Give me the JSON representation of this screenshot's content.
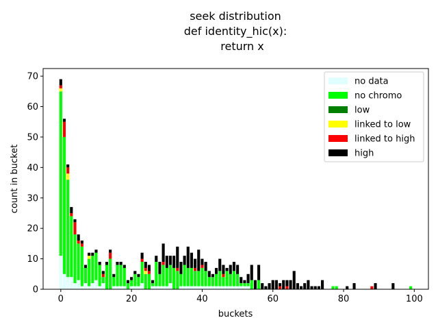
{
  "chart_data": {
    "type": "bar",
    "stacked": true,
    "title_lines": [
      "seek distribution",
      "def identity_hic(x):",
      "return x"
    ],
    "xlabel": "buckets",
    "ylabel": "count in bucket",
    "xlim": [
      -5,
      104
    ],
    "ylim": [
      0,
      72.5
    ],
    "xticks": [
      0,
      20,
      40,
      60,
      80,
      100
    ],
    "yticks": [
      0,
      10,
      20,
      30,
      40,
      50,
      60,
      70
    ],
    "grid": false,
    "legend_position": "top-right",
    "colors": [
      "#e0ffff",
      "#00ff00",
      "#008000",
      "#ffff00",
      "#ff0000",
      "#000000"
    ],
    "buckets": [
      0,
      1,
      2,
      3,
      4,
      5,
      6,
      7,
      8,
      9,
      10,
      11,
      12,
      13,
      14,
      15,
      16,
      17,
      18,
      19,
      20,
      21,
      22,
      23,
      24,
      25,
      26,
      27,
      28,
      29,
      30,
      31,
      32,
      33,
      34,
      35,
      36,
      37,
      38,
      39,
      40,
      41,
      42,
      43,
      44,
      45,
      46,
      47,
      48,
      49,
      50,
      51,
      52,
      53,
      54,
      55,
      56,
      57,
      58,
      59,
      60,
      61,
      62,
      63,
      64,
      65,
      66,
      67,
      68,
      69,
      70,
      71,
      72,
      73,
      74,
      75,
      76,
      77,
      78,
      79,
      80,
      81,
      82,
      83,
      84,
      85,
      86,
      87,
      88,
      89,
      90,
      91,
      92,
      93,
      94,
      95,
      96,
      97,
      98,
      99,
      100
    ],
    "series": [
      {
        "name": "no data",
        "values": [
          11,
          5,
          4,
          4,
          2,
          3,
          1,
          2,
          1,
          2,
          3,
          1,
          2,
          0,
          0,
          1,
          1,
          1,
          1,
          0,
          1,
          1,
          1,
          2,
          0,
          0,
          1,
          1,
          1,
          1,
          1,
          2,
          0,
          0,
          1,
          1,
          1,
          1,
          1,
          1,
          1,
          1,
          1,
          1,
          1,
          1,
          1,
          1,
          1,
          1,
          1,
          1,
          1,
          1,
          0,
          0,
          0,
          0,
          0,
          0,
          0,
          0,
          0,
          0,
          0,
          0,
          0,
          0,
          0,
          0,
          0,
          0,
          0,
          0,
          0,
          0,
          0,
          0,
          0,
          0,
          0,
          0,
          0,
          0,
          0,
          0,
          0,
          0,
          0,
          0,
          0,
          0,
          0,
          0,
          0,
          0,
          0,
          0,
          0,
          0,
          0
        ]
      },
      {
        "name": "no chromo",
        "values": [
          54,
          45,
          32,
          20,
          16,
          12,
          13,
          5,
          9,
          9,
          9,
          7,
          2,
          8,
          10,
          3,
          7,
          7,
          6,
          2,
          2,
          4,
          3,
          7,
          5,
          5,
          1,
          8,
          4,
          7,
          6,
          6,
          7,
          6,
          4,
          7,
          6,
          6,
          5,
          5,
          6,
          5,
          3,
          3,
          4,
          5,
          3,
          5,
          4,
          5,
          4,
          1,
          1,
          1,
          3,
          0,
          3,
          0,
          0,
          0,
          0,
          0,
          0,
          0,
          0,
          0,
          0,
          0,
          0,
          0,
          0,
          0,
          0,
          0,
          0,
          0,
          0,
          1,
          1,
          0,
          0,
          0,
          0,
          0,
          0,
          0,
          0,
          0,
          0,
          0,
          0,
          0,
          0,
          0,
          0,
          0,
          0,
          0,
          0,
          1,
          0
        ]
      },
      {
        "name": "low",
        "values": [
          0,
          0,
          0,
          0,
          0,
          0,
          0,
          0,
          0,
          0,
          0,
          0,
          0,
          0,
          0,
          0,
          0,
          0,
          0,
          0,
          0,
          0,
          0,
          0,
          0,
          0,
          0,
          0,
          0,
          0,
          0,
          0,
          0,
          0,
          0,
          0,
          0,
          0,
          0,
          0,
          0,
          0,
          0,
          0,
          0,
          0,
          0,
          0,
          0,
          0,
          0,
          0,
          0,
          0,
          0,
          0,
          0,
          0,
          0,
          0,
          0,
          0,
          0,
          0,
          0,
          0,
          0,
          0,
          0,
          0,
          0,
          0,
          0,
          0,
          0,
          0,
          0,
          0,
          0,
          0,
          0,
          0,
          0,
          0,
          0,
          0,
          0,
          0,
          0,
          0,
          0,
          0,
          0,
          0,
          0,
          0,
          0,
          0,
          0,
          0,
          0
        ]
      },
      {
        "name": "linked to low",
        "values": [
          1,
          0,
          2,
          0,
          0,
          0,
          0,
          0,
          1,
          0,
          0,
          0,
          0,
          0,
          0,
          0,
          0,
          0,
          0,
          0,
          0,
          0,
          0,
          0,
          1,
          0,
          0,
          0,
          0,
          0,
          0,
          0,
          0,
          0,
          0,
          0,
          0,
          0,
          0,
          0,
          0,
          0,
          0,
          0,
          0,
          0,
          0,
          0,
          0,
          0,
          0,
          0,
          0,
          0,
          0,
          0,
          0,
          0,
          0,
          0,
          0,
          0,
          0,
          0,
          0,
          0,
          0,
          0,
          0,
          0,
          0,
          0,
          0,
          0,
          0,
          0,
          0,
          0,
          0,
          0,
          0,
          0,
          0,
          0,
          0,
          0,
          0,
          0,
          0,
          0,
          0,
          0,
          0,
          0,
          0,
          0,
          0,
          0,
          0,
          0,
          0
        ]
      },
      {
        "name": "linked to high",
        "values": [
          1,
          5,
          2,
          1,
          4,
          1,
          1,
          0,
          0,
          0,
          0,
          0,
          1,
          0,
          2,
          0,
          0,
          0,
          0,
          0,
          0,
          0,
          0,
          1,
          1,
          1,
          0,
          0,
          0,
          1,
          0,
          0,
          0,
          1,
          0,
          0,
          0,
          0,
          1,
          0,
          1,
          0,
          0,
          0,
          0,
          0,
          1,
          0,
          0,
          0,
          0,
          0,
          0,
          0,
          0,
          0,
          0,
          0,
          0,
          0,
          0,
          0,
          1,
          0,
          1,
          0,
          0,
          0,
          0,
          0,
          0,
          0,
          0,
          0,
          0,
          0,
          0,
          0,
          0,
          0,
          0,
          0,
          0,
          0,
          0,
          0,
          0,
          0,
          1,
          0,
          0,
          0,
          0,
          0,
          0,
          0,
          0,
          0,
          0,
          0,
          0
        ]
      },
      {
        "name": "high",
        "values": [
          2,
          1,
          1,
          2,
          1,
          2,
          1,
          1,
          1,
          1,
          1,
          1,
          1,
          1,
          1,
          1,
          1,
          1,
          1,
          1,
          1,
          1,
          1,
          2,
          2,
          2,
          1,
          2,
          4,
          6,
          4,
          3,
          4,
          7,
          4,
          3,
          7,
          5,
          3,
          7,
          2,
          3,
          2,
          1,
          2,
          4,
          3,
          1,
          3,
          3,
          3,
          2,
          1,
          3,
          5,
          3,
          5,
          2,
          1,
          2,
          3,
          3,
          1,
          3,
          2,
          3,
          6,
          2,
          1,
          2,
          3,
          1,
          1,
          1,
          3,
          0,
          0,
          0,
          0,
          0,
          0,
          1,
          0,
          2,
          0,
          0,
          0,
          0,
          0,
          2,
          0,
          0,
          0,
          0,
          2,
          0,
          0,
          0,
          0,
          0,
          0
        ]
      }
    ]
  }
}
